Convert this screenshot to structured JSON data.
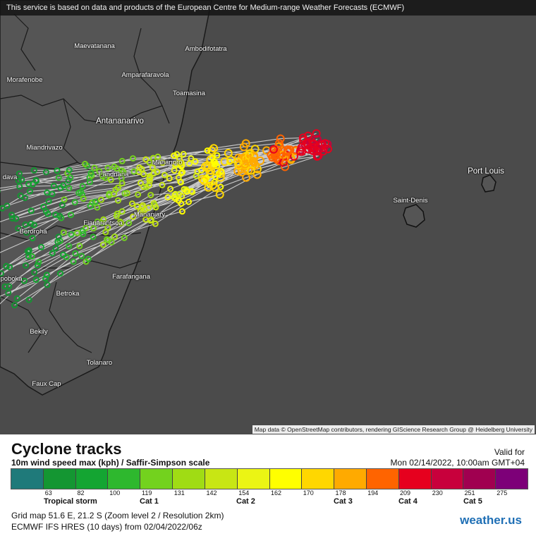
{
  "map": {
    "banner": "This service is based on data and products of the European Centre for Medium-range Weather Forecasts (ECMWF)",
    "attribution": "Map data © OpenStreetMap contributors, rendering GIScience Research Group @ Heidelberg University",
    "cities": [
      "Maevatanana",
      "Ambodifotatra",
      "Amparafaravola",
      "Morafenobe",
      "Toamasina",
      "Antananarivo",
      "Miandrivazo",
      "Mahanoro",
      "Fandriana",
      "dava",
      "Port Louis",
      "Saint-Denis",
      "Mananjary",
      "Fianarantsoa",
      "Beroroha",
      "Farafangana",
      "poboka",
      "Betroka",
      "Bekily",
      "Tolanaro",
      "Faux Cap"
    ],
    "colors": {
      "sea": "#4b4b4b",
      "land": "#555555",
      "track": "#d9d9d9"
    }
  },
  "legend": {
    "title": "Cyclone tracks",
    "subtitle": "10m wind speed max (kph) / Saffir-Simpson scale",
    "valid_label": "Valid for",
    "valid_date": "Mon 02/14/2022, 10:00am GMT+04",
    "colors": [
      "#1f7a7a",
      "#149632",
      "#14a532",
      "#2eb82e",
      "#73d21e",
      "#a0dc14",
      "#c8e614",
      "#ebf514",
      "#ffff00",
      "#ffd700",
      "#ffaa00",
      "#ff6400",
      "#e6001e",
      "#c8003c",
      "#a00050",
      "#7d0078"
    ],
    "ticks": [
      "63",
      "82",
      "100",
      "119",
      "131",
      "142",
      "154",
      "162",
      "170",
      "178",
      "194",
      "209",
      "230",
      "251",
      "275"
    ],
    "categories": [
      "Tropical storm",
      "Cat 1",
      "Cat 2",
      "Cat 3",
      "Cat 4",
      "Cat 5"
    ],
    "grid_line": "Grid map 51.6 E, 21.2 S (Zoom level 2 / Resolution 2km)",
    "model_line": "ECMWF IFS HRES (10 days) from 02/04/2022/06z",
    "logo": "weather.us"
  }
}
